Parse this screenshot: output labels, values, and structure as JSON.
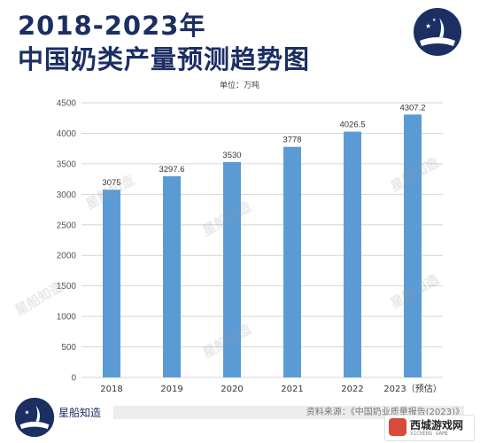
{
  "header": {
    "title_line1": "2018-2023年",
    "title_line2": "中国奶类产量预测趋势图"
  },
  "watermark_text": "星船知造",
  "footer": {
    "brand": "星船知造",
    "source": "资料来源：《中国奶业质量报告(2023)》"
  },
  "corner_badge": {
    "name": "西城游戏网",
    "sub": "XICHENG GAME"
  },
  "colors": {
    "bar": "#5b9bd5",
    "title": "#1b2f63",
    "logo_bg": "#1b2f63"
  },
  "chart_data": {
    "type": "bar",
    "unit_label": "单位：万吨",
    "categories": [
      "2018",
      "2019",
      "2020",
      "2021",
      "2022",
      "2023（预估）"
    ],
    "values": [
      3075,
      3297.6,
      3530,
      3778,
      4026.5,
      4307.2
    ],
    "value_labels": [
      "3075",
      "3297.6",
      "3530",
      "3778",
      "4026.5",
      "4307.2"
    ],
    "ylim": [
      0,
      4500
    ],
    "yticks": [
      0,
      500,
      1000,
      1500,
      2000,
      2500,
      3000,
      3500,
      4000,
      4500
    ],
    "grid": true,
    "legend": "none"
  }
}
